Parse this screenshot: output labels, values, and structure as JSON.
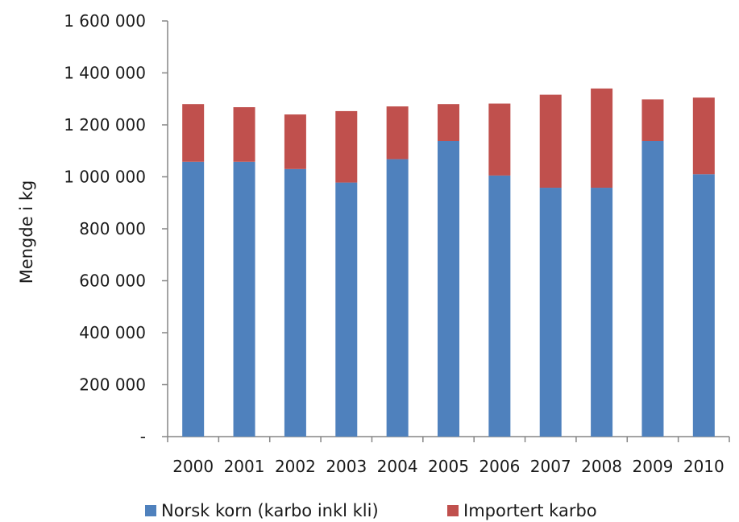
{
  "chart_data": {
    "type": "bar",
    "stacked": true,
    "categories": [
      "2000",
      "2001",
      "2002",
      "2003",
      "2004",
      "2005",
      "2006",
      "2007",
      "2008",
      "2009",
      "2010"
    ],
    "series": [
      {
        "name": "Norsk korn (karbo inkl kli)",
        "color": "#4f81bd",
        "values": [
          1058000,
          1058000,
          1030000,
          978000,
          1068000,
          1138000,
          1005000,
          958000,
          958000,
          1138000,
          1010000
        ]
      },
      {
        "name": "Importert karbo",
        "color": "#c0504d",
        "values": [
          222000,
          210000,
          210000,
          275000,
          203000,
          142000,
          277000,
          358000,
          382000,
          160000,
          295000
        ]
      }
    ],
    "title": "",
    "xlabel": "",
    "ylabel": "Mengde i kg",
    "ylim": [
      0,
      1600000
    ],
    "yticks": [
      0,
      200000,
      400000,
      600000,
      800000,
      1000000,
      1200000,
      1400000,
      1600000
    ],
    "ytick_labels": [
      "-",
      "200 000",
      "400 000",
      "600 000",
      "800 000",
      "1 000 000",
      "1 200 000",
      "1 400 000",
      "1 600 000"
    ],
    "grid": false,
    "legend_position": "bottom"
  }
}
